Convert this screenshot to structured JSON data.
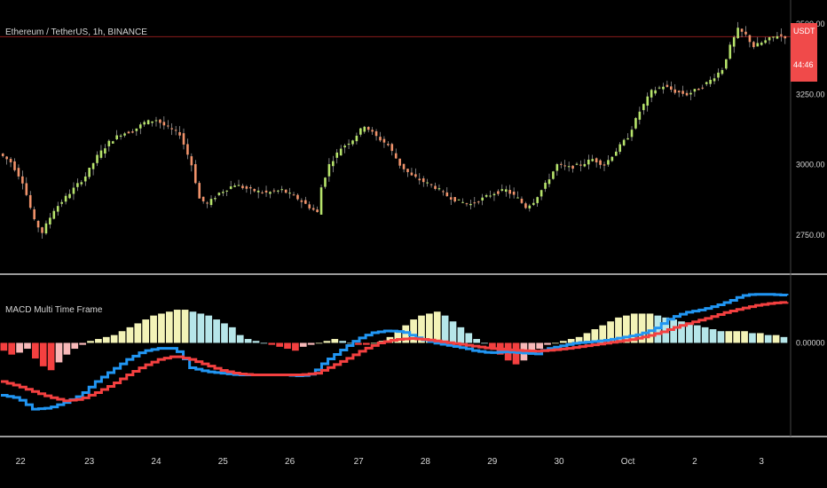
{
  "colors": {
    "background": "#000000",
    "axis_text": "#d6d6d6",
    "separator": "#9a9a9a",
    "candle_up": "#b6e36b",
    "candle_down": "#f0926a",
    "wick": "#c9c9c9",
    "price_line": "#8b1c1c",
    "price_tag": "#f04a4a",
    "macd_line": "#2196f3",
    "signal_line": "#f44040",
    "hist_pos_grow": "#f3f3b7",
    "hist_pos_fall": "#b6e6e9",
    "hist_neg": "#f44040",
    "hist_neg_light": "#f7b8b8"
  },
  "header": {
    "symbol_title": "Ethereum / TetherUS, 1h, BINANCE",
    "indicator_title": "MACD Multi Time Frame"
  },
  "price_tag": {
    "currency": "USDT",
    "countdown": "44:46"
  },
  "chart_data": [
    {
      "type": "candlestick",
      "title": "Ethereum / TetherUS, 1h, BINANCE",
      "yticks": [
        "3500.00",
        "3250.00",
        "3000.00",
        "2750.00"
      ],
      "ytick_values": [
        3500,
        3250,
        3000,
        2750
      ],
      "ylim": [
        2640,
        3560
      ],
      "last_price": 3455,
      "price_path": [
        [
          0,
          3040
        ],
        [
          3,
          3010
        ],
        [
          6,
          2940
        ],
        [
          9,
          2800
        ],
        [
          11,
          2760
        ],
        [
          14,
          2840
        ],
        [
          18,
          2900
        ],
        [
          22,
          2960
        ],
        [
          25,
          3030
        ],
        [
          28,
          3080
        ],
        [
          31,
          3110
        ],
        [
          34,
          3120
        ],
        [
          37,
          3150
        ],
        [
          40,
          3160
        ],
        [
          43,
          3130
        ],
        [
          46,
          3110
        ],
        [
          49,
          3000
        ],
        [
          51,
          2880
        ],
        [
          53,
          2860
        ],
        [
          56,
          2900
        ],
        [
          60,
          2930
        ],
        [
          64,
          2910
        ],
        [
          68,
          2900
        ],
        [
          72,
          2910
        ],
        [
          76,
          2880
        ],
        [
          79,
          2850
        ],
        [
          81,
          2830
        ],
        [
          82,
          2920
        ],
        [
          84,
          3000
        ],
        [
          87,
          3060
        ],
        [
          90,
          3090
        ],
        [
          93,
          3140
        ],
        [
          96,
          3100
        ],
        [
          99,
          3070
        ],
        [
          102,
          3000
        ],
        [
          105,
          2960
        ],
        [
          108,
          2940
        ],
        [
          111,
          2920
        ],
        [
          114,
          2890
        ],
        [
          117,
          2870
        ],
        [
          120,
          2860
        ],
        [
          123,
          2880
        ],
        [
          126,
          2900
        ],
        [
          129,
          2910
        ],
        [
          132,
          2880
        ],
        [
          134,
          2850
        ],
        [
          136,
          2870
        ],
        [
          139,
          2930
        ],
        [
          142,
          3000
        ],
        [
          145,
          2990
        ],
        [
          148,
          3000
        ],
        [
          151,
          3020
        ],
        [
          154,
          3000
        ],
        [
          157,
          3050
        ],
        [
          160,
          3100
        ],
        [
          163,
          3190
        ],
        [
          166,
          3260
        ],
        [
          169,
          3280
        ],
        [
          172,
          3260
        ],
        [
          175,
          3250
        ],
        [
          178,
          3270
        ],
        [
          181,
          3300
        ],
        [
          184,
          3340
        ],
        [
          186,
          3420
        ],
        [
          188,
          3480
        ],
        [
          190,
          3460
        ],
        [
          192,
          3420
        ],
        [
          195,
          3440
        ],
        [
          198,
          3460
        ],
        [
          200,
          3455
        ]
      ]
    },
    {
      "type": "line",
      "title": "MACD Multi Time Frame",
      "yticks": [
        "0.00000"
      ],
      "ytick_values": [
        0
      ],
      "ylim": [
        -160,
        110
      ],
      "series": [
        {
          "role": "macd",
          "points": [
            [
              0,
              -95
            ],
            [
              4,
              -100
            ],
            [
              8,
              -120
            ],
            [
              12,
              -118
            ],
            [
              16,
              -108
            ],
            [
              20,
              -95
            ],
            [
              24,
              -70
            ],
            [
              28,
              -50
            ],
            [
              32,
              -30
            ],
            [
              36,
              -15
            ],
            [
              40,
              -10
            ],
            [
              44,
              -10
            ],
            [
              46,
              -25
            ],
            [
              48,
              -45
            ],
            [
              52,
              -52
            ],
            [
              56,
              -55
            ],
            [
              60,
              -58
            ],
            [
              64,
              -58
            ],
            [
              68,
              -58
            ],
            [
              72,
              -58
            ],
            [
              76,
              -60
            ],
            [
              79,
              -56
            ],
            [
              82,
              -35
            ],
            [
              86,
              -15
            ],
            [
              90,
              5
            ],
            [
              94,
              18
            ],
            [
              98,
              22
            ],
            [
              102,
              20
            ],
            [
              106,
              8
            ],
            [
              110,
              0
            ],
            [
              114,
              -5
            ],
            [
              118,
              -10
            ],
            [
              120,
              -14
            ],
            [
              124,
              -18
            ],
            [
              128,
              -16
            ],
            [
              132,
              -18
            ],
            [
              136,
              -20
            ],
            [
              138,
              -12
            ],
            [
              142,
              -6
            ],
            [
              146,
              0
            ],
            [
              150,
              2
            ],
            [
              154,
              5
            ],
            [
              158,
              10
            ],
            [
              162,
              15
            ],
            [
              166,
              25
            ],
            [
              170,
              45
            ],
            [
              174,
              55
            ],
            [
              178,
              60
            ],
            [
              182,
              68
            ],
            [
              186,
              78
            ],
            [
              188,
              85
            ],
            [
              191,
              88
            ],
            [
              195,
              88
            ],
            [
              200,
              86
            ]
          ]
        },
        {
          "role": "signal",
          "points": [
            [
              0,
              -70
            ],
            [
              4,
              -78
            ],
            [
              8,
              -88
            ],
            [
              12,
              -98
            ],
            [
              16,
              -105
            ],
            [
              20,
              -102
            ],
            [
              24,
              -90
            ],
            [
              28,
              -76
            ],
            [
              32,
              -58
            ],
            [
              36,
              -42
            ],
            [
              40,
              -30
            ],
            [
              44,
              -24
            ],
            [
              48,
              -30
            ],
            [
              52,
              -40
            ],
            [
              56,
              -50
            ],
            [
              60,
              -56
            ],
            [
              64,
              -58
            ],
            [
              68,
              -58
            ],
            [
              72,
              -58
            ],
            [
              76,
              -58
            ],
            [
              80,
              -55
            ],
            [
              84,
              -42
            ],
            [
              88,
              -28
            ],
            [
              92,
              -12
            ],
            [
              96,
              0
            ],
            [
              100,
              6
            ],
            [
              104,
              8
            ],
            [
              108,
              6
            ],
            [
              112,
              2
            ],
            [
              116,
              -2
            ],
            [
              120,
              -6
            ],
            [
              124,
              -10
            ],
            [
              128,
              -12
            ],
            [
              132,
              -14
            ],
            [
              136,
              -15
            ],
            [
              140,
              -13
            ],
            [
              144,
              -10
            ],
            [
              148,
              -6
            ],
            [
              152,
              -2
            ],
            [
              156,
              2
            ],
            [
              160,
              6
            ],
            [
              164,
              12
            ],
            [
              168,
              20
            ],
            [
              172,
              30
            ],
            [
              176,
              38
            ],
            [
              180,
              46
            ],
            [
              184,
              55
            ],
            [
              188,
              62
            ],
            [
              192,
              68
            ],
            [
              196,
              72
            ],
            [
              200,
              74
            ]
          ]
        }
      ]
    },
    {
      "type": "bar",
      "title": "MACD histogram",
      "note": "histogram values per bar, same x scale as above",
      "x_count": 100,
      "values": [
        -4,
        -6,
        -5,
        -3,
        -8,
        -12,
        -14,
        -10,
        -6,
        -3,
        -1,
        1,
        2,
        3,
        4,
        6,
        8,
        10,
        12,
        14,
        15,
        16,
        17,
        17,
        16,
        15,
        14,
        12,
        10,
        8,
        4,
        2,
        1,
        0,
        -1,
        -2,
        -3,
        -4,
        -2,
        -1,
        0,
        1,
        2,
        1,
        0,
        -1,
        -1,
        0,
        1,
        3,
        6,
        9,
        12,
        14,
        15,
        16,
        14,
        11,
        8,
        5,
        2,
        0,
        -3,
        -6,
        -9,
        -11,
        -9,
        -6,
        -3,
        -1,
        0,
        1,
        2,
        3,
        5,
        7,
        9,
        11,
        13,
        14,
        15,
        15,
        15,
        14,
        13,
        12,
        11,
        10,
        9,
        8,
        7,
        6,
        6,
        6,
        6,
        5,
        5,
        4,
        4,
        3
      ]
    }
  ],
  "x_axis": {
    "labels": [
      "22",
      "23",
      "24",
      "25",
      "26",
      "27",
      "28",
      "29",
      "30",
      "Oct",
      "2",
      "3"
    ],
    "label_x_units": [
      10,
      45,
      79,
      113,
      147,
      182,
      216,
      250,
      284,
      319,
      353,
      387
    ]
  }
}
